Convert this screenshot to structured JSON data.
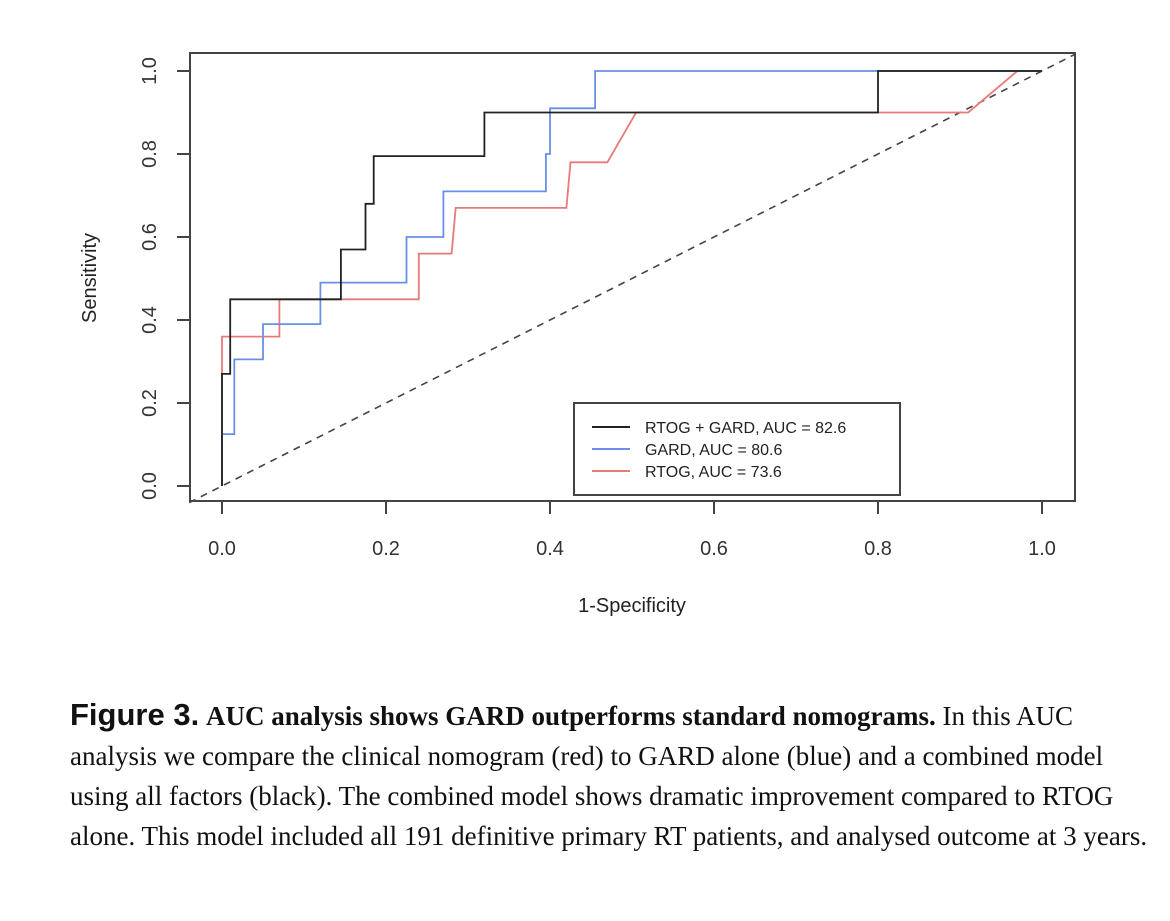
{
  "chart_data": {
    "type": "line",
    "xlabel": "1-Specificity",
    "ylabel": "Sensitivity",
    "xlim": [
      0,
      1
    ],
    "ylim": [
      0,
      1
    ],
    "x_ticks": [
      "0.0",
      "0.2",
      "0.4",
      "0.6",
      "0.8",
      "1.0"
    ],
    "y_ticks": [
      "0.0",
      "0.2",
      "0.4",
      "0.6",
      "0.8",
      "1.0"
    ],
    "grid": false,
    "legend_position": "bottom-right",
    "series": [
      {
        "name": "RTOG + GARD, AUC = 82.6",
        "color": "#222222",
        "points": [
          [
            0,
            0
          ],
          [
            0,
            0.27
          ],
          [
            0.01,
            0.27
          ],
          [
            0.01,
            0.45
          ],
          [
            0.145,
            0.45
          ],
          [
            0.145,
            0.57
          ],
          [
            0.175,
            0.57
          ],
          [
            0.175,
            0.68
          ],
          [
            0.185,
            0.68
          ],
          [
            0.185,
            0.795
          ],
          [
            0.32,
            0.795
          ],
          [
            0.32,
            0.9
          ],
          [
            0.8,
            0.9
          ],
          [
            0.8,
            1.0
          ],
          [
            1,
            1.0
          ]
        ]
      },
      {
        "name": "GARD, AUC = 80.6",
        "color": "#6b8fe6",
        "points": [
          [
            0,
            0
          ],
          [
            0,
            0.125
          ],
          [
            0.015,
            0.125
          ],
          [
            0.015,
            0.305
          ],
          [
            0.05,
            0.305
          ],
          [
            0.05,
            0.39
          ],
          [
            0.12,
            0.39
          ],
          [
            0.12,
            0.49
          ],
          [
            0.225,
            0.49
          ],
          [
            0.225,
            0.6
          ],
          [
            0.27,
            0.6
          ],
          [
            0.27,
            0.71
          ],
          [
            0.395,
            0.71
          ],
          [
            0.395,
            0.8
          ],
          [
            0.4,
            0.8
          ],
          [
            0.4,
            0.91
          ],
          [
            0.455,
            0.91
          ],
          [
            0.455,
            1.0
          ],
          [
            1,
            1.0
          ]
        ]
      },
      {
        "name": "RTOG, AUC = 73.6",
        "color": "#e87a7a",
        "points": [
          [
            0,
            0
          ],
          [
            0,
            0.36
          ],
          [
            0.07,
            0.36
          ],
          [
            0.07,
            0.45
          ],
          [
            0.24,
            0.45
          ],
          [
            0.24,
            0.56
          ],
          [
            0.28,
            0.56
          ],
          [
            0.285,
            0.67
          ],
          [
            0.42,
            0.67
          ],
          [
            0.425,
            0.78
          ],
          [
            0.47,
            0.78
          ],
          [
            0.505,
            0.9
          ],
          [
            0.91,
            0.9
          ],
          [
            0.97,
            1.0
          ],
          [
            1,
            1.0
          ]
        ]
      }
    ],
    "reference_line": [
      [
        0,
        0
      ],
      [
        1,
        1
      ]
    ]
  },
  "caption": {
    "label": "Figure 3.",
    "title": "AUC analysis shows GARD outperforms standard nomograms.",
    "body": "In this AUC analysis we compare the clinical nomogram (red) to GARD alone (blue) and a combined model using all factors (black). The combined model shows dramatic improvement compared to RTOG alone. This model included all 191 definitive primary RT patients, and analysed outcome at 3 years."
  }
}
